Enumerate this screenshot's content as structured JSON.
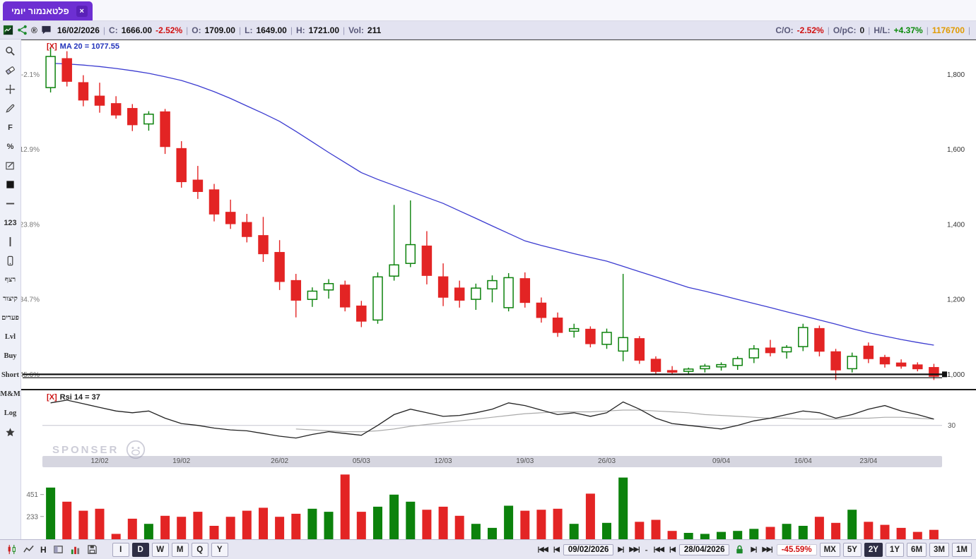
{
  "tab": {
    "title": "פלטאנמור יומי",
    "close": "×"
  },
  "watermark": {
    "text": "SPONSER"
  },
  "header": {
    "date": "16/02/2026",
    "quote_fields": [
      {
        "label": "C:",
        "value": "1666.00",
        "change": "-2.52%"
      },
      {
        "label": "O:",
        "value": "1709.00"
      },
      {
        "label": "L:",
        "value": "1649.00"
      },
      {
        "label": "H:",
        "value": "1721.00"
      },
      {
        "label": "Vol:",
        "value": "211"
      }
    ],
    "right_fields": [
      {
        "label": "C/O:",
        "value": "-2.52%",
        "color": "#d01010"
      },
      {
        "label": "O/pC:",
        "value": "0",
        "color": "#222222"
      },
      {
        "label": "H/L:",
        "value": "+4.37%",
        "color": "#0a8a0a"
      },
      {
        "label": "",
        "value": "1176700",
        "color": "#e09a00"
      }
    ]
  },
  "sidebar": {
    "items": [
      {
        "name": "zoom",
        "icon": "magnifier"
      },
      {
        "name": "eraser",
        "icon": "eraser"
      },
      {
        "name": "move",
        "icon": "move"
      },
      {
        "name": "draw",
        "icon": "pencil"
      },
      {
        "name": "fibonacci",
        "label": "F"
      },
      {
        "name": "percent",
        "label": "%"
      },
      {
        "name": "annotate",
        "icon": "editnote"
      },
      {
        "name": "fill-square",
        "icon": "blacksq"
      },
      {
        "name": "horizontal-line",
        "icon": "hline"
      },
      {
        "name": "numbers",
        "label": "123"
      },
      {
        "name": "vertical-line",
        "icon": "vline"
      },
      {
        "name": "mobile",
        "icon": "phone"
      },
      {
        "name": "retzef",
        "label": "רצף",
        "heb": true
      },
      {
        "name": "kitzur",
        "label": "קיצור",
        "heb": true
      },
      {
        "name": "pearim",
        "label": "פערים",
        "heb": true
      },
      {
        "name": "level",
        "label": "Lvl",
        "serif": true
      },
      {
        "name": "buy",
        "label": "Buy",
        "serif": true
      },
      {
        "name": "short",
        "label": "Short",
        "serif": true
      },
      {
        "name": "mm",
        "label": "M&M",
        "serif": true
      },
      {
        "name": "log",
        "label": "Log",
        "serif": true
      },
      {
        "name": "favorites",
        "icon": "star"
      }
    ]
  },
  "bottom_toolbar": {
    "style_icons": [
      {
        "name": "candle-style",
        "icon": "candle"
      },
      {
        "name": "line-style",
        "icon": "linechart"
      }
    ],
    "hl_label": "H",
    "more_icons": [
      {
        "name": "layout",
        "icon": "layout"
      },
      {
        "name": "volume-style",
        "icon": "volbars"
      },
      {
        "name": "save",
        "icon": "save"
      }
    ],
    "intervals": [
      "I",
      "D",
      "W",
      "M",
      "Q",
      "Y"
    ],
    "active_interval": "D",
    "nav": {
      "back": [
        "|◀◀",
        "|◀"
      ],
      "fwd": [
        "▶|",
        "▶▶|"
      ],
      "from_date": "09/02/2026",
      "to_date": "28/04/2026",
      "separator": "-",
      "change": "-45.59%"
    },
    "ranges": [
      "MX",
      "5Y",
      "2Y",
      "1Y",
      "6M",
      "3M",
      "1M"
    ],
    "active_range": "2Y"
  },
  "chart_data": {
    "price_panel": {
      "type": "candlestick",
      "close_glyph": "[X]",
      "ma_label": "MA 20 = 1077.55",
      "ylim": [
        980,
        1880
      ],
      "axis_ticks": [
        {
          "pct": "-2.1%",
          "price": "1,800",
          "value": 1800
        },
        {
          "pct": "-12.9%",
          "price": "1,600",
          "value": 1600
        },
        {
          "pct": "-23.8%",
          "price": "1,400",
          "value": 1400
        },
        {
          "pct": "-34.7%",
          "price": "1,200",
          "value": 1200
        },
        {
          "pct": "-45.6%",
          "price": "1,000",
          "value": 1000
        }
      ],
      "level_lines": [
        1000,
        991
      ],
      "candles": [
        [
          1765,
          1872,
          1752,
          1848
        ],
        [
          1842,
          1862,
          1768,
          1782
        ],
        [
          1778,
          1798,
          1715,
          1732
        ],
        [
          1742,
          1778,
          1698,
          1718
        ],
        [
          1722,
          1742,
          1682,
          1692
        ],
        [
          1709,
          1721,
          1649,
          1666
        ],
        [
          1668,
          1702,
          1650,
          1694
        ],
        [
          1700,
          1708,
          1588,
          1608
        ],
        [
          1602,
          1622,
          1498,
          1514
        ],
        [
          1518,
          1556,
          1468,
          1488
        ],
        [
          1492,
          1508,
          1408,
          1428
        ],
        [
          1432,
          1466,
          1388,
          1402
        ],
        [
          1405,
          1428,
          1352,
          1368
        ],
        [
          1370,
          1420,
          1300,
          1322
        ],
        [
          1325,
          1358,
          1225,
          1248
        ],
        [
          1250,
          1268,
          1152,
          1198
        ],
        [
          1200,
          1232,
          1180,
          1222
        ],
        [
          1225,
          1254,
          1202,
          1242
        ],
        [
          1238,
          1250,
          1168,
          1180
        ],
        [
          1182,
          1196,
          1126,
          1142
        ],
        [
          1145,
          1272,
          1135,
          1260
        ],
        [
          1262,
          1452,
          1250,
          1292
        ],
        [
          1296,
          1464,
          1286,
          1346
        ],
        [
          1342,
          1382,
          1240,
          1264
        ],
        [
          1260,
          1296,
          1182,
          1206
        ],
        [
          1230,
          1250,
          1178,
          1198
        ],
        [
          1200,
          1242,
          1172,
          1230
        ],
        [
          1228,
          1264,
          1192,
          1250
        ],
        [
          1178,
          1270,
          1168,
          1258
        ],
        [
          1255,
          1272,
          1178,
          1192
        ],
        [
          1190,
          1205,
          1138,
          1152
        ],
        [
          1150,
          1165,
          1100,
          1112
        ],
        [
          1115,
          1135,
          1098,
          1122
        ],
        [
          1120,
          1128,
          1072,
          1082
        ],
        [
          1080,
          1122,
          1068,
          1112
        ],
        [
          1062,
          1268,
          1035,
          1098
        ],
        [
          1095,
          1102,
          1028,
          1038
        ],
        [
          1040,
          1048,
          998,
          1008
        ],
        [
          1010,
          1022,
          1000,
          1006
        ],
        [
          1008,
          1018,
          998,
          1014
        ],
        [
          1015,
          1028,
          1005,
          1022
        ],
        [
          1020,
          1032,
          1010,
          1026
        ],
        [
          1024,
          1048,
          1012,
          1042
        ],
        [
          1044,
          1078,
          1030,
          1068
        ],
        [
          1070,
          1092,
          1048,
          1058
        ],
        [
          1060,
          1078,
          1042,
          1072
        ],
        [
          1074,
          1135,
          1062,
          1125
        ],
        [
          1122,
          1130,
          1048,
          1062
        ],
        [
          1060,
          1068,
          985,
          1012
        ],
        [
          1015,
          1058,
          1005,
          1048
        ],
        [
          1075,
          1085,
          1030,
          1042
        ],
        [
          1045,
          1052,
          1018,
          1028
        ],
        [
          1030,
          1040,
          1015,
          1022
        ],
        [
          1025,
          1032,
          1008,
          1015
        ],
        [
          1018,
          1028,
          985,
          995
        ]
      ],
      "ma20": [
        1830,
        1828,
        1825,
        1821,
        1816,
        1810,
        1803,
        1794,
        1784,
        1770,
        1754,
        1736,
        1716,
        1696,
        1675,
        1648,
        1620,
        1592,
        1565,
        1538,
        1520,
        1504,
        1488,
        1472,
        1456,
        1436,
        1416,
        1396,
        1376,
        1356,
        1344,
        1333,
        1322,
        1312,
        1302,
        1288,
        1274,
        1260,
        1246,
        1232,
        1222,
        1211,
        1200,
        1189,
        1178,
        1167,
        1156,
        1145,
        1134,
        1122,
        1111,
        1102,
        1093,
        1085,
        1078
      ]
    },
    "rsi_panel": {
      "type": "line",
      "close_glyph": "[X]",
      "label": "Rsi 14 = 37",
      "gridline_value": 30,
      "gridline_label": "30",
      "ylim": [
        0,
        65
      ],
      "values": [
        55,
        58,
        54,
        50,
        46,
        44,
        46,
        38,
        32,
        30,
        27,
        25,
        24,
        21,
        18,
        16,
        20,
        23,
        21,
        19,
        30,
        42,
        48,
        44,
        40,
        41,
        44,
        48,
        55,
        52,
        47,
        42,
        44,
        40,
        44,
        56,
        48,
        38,
        32,
        30,
        28,
        26,
        30,
        35,
        38,
        42,
        46,
        44,
        38,
        42,
        48,
        52,
        46,
        42,
        37
      ],
      "avg_values": [
        26,
        25,
        24,
        23,
        23,
        24,
        26,
        29,
        31,
        33,
        35,
        37,
        39,
        41,
        43,
        44,
        45,
        45,
        45,
        46,
        47,
        47,
        46,
        45,
        44,
        42,
        41,
        40,
        39,
        38,
        38,
        37,
        37,
        37,
        38,
        38,
        39,
        39,
        38,
        37
      ],
      "avg_start_index": 15
    },
    "volume_panel": {
      "type": "bar",
      "axis_ticks": [
        {
          "label": "451",
          "value": 451
        },
        {
          "label": "233",
          "value": 233
        }
      ],
      "ymax": 680,
      "values": [
        520,
        380,
        290,
        310,
        60,
        211,
        160,
        240,
        230,
        280,
        140,
        230,
        290,
        320,
        230,
        260,
        310,
        280,
        650,
        280,
        330,
        450,
        380,
        300,
        330,
        240,
        160,
        120,
        340,
        290,
        300,
        310,
        160,
        460,
        170,
        620,
        180,
        200,
        90,
        70,
        60,
        80,
        90,
        110,
        130,
        160,
        140,
        230,
        170,
        300,
        180,
        150,
        120,
        80,
        100
      ]
    },
    "x_axis": {
      "tick_labels": [
        "12/02",
        "19/02",
        "26/02",
        "05/03",
        "12/03",
        "19/03",
        "26/03",
        "09/04",
        "16/04",
        "23/04"
      ],
      "tick_indices": [
        3,
        8,
        14,
        19,
        24,
        29,
        34,
        41,
        46,
        50
      ]
    },
    "colors": {
      "up": "#0c820c",
      "down": "#e32424",
      "ma": "#3b3bd0",
      "rsi": "#222222",
      "rsi_avg": "#aaaaaa"
    }
  }
}
